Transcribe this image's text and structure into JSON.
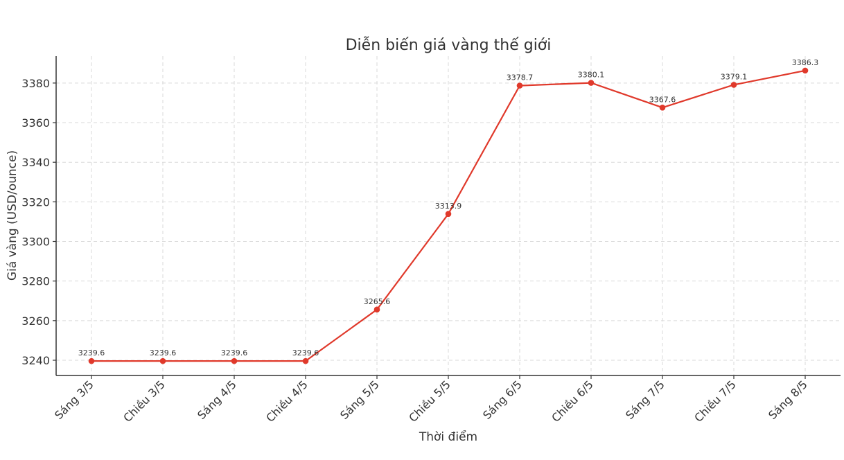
{
  "chart_data": {
    "type": "line",
    "title": "Diễn biến giá vàng thế giới",
    "xlabel": "Thời điểm",
    "ylabel": "Giá vàng (USD/ounce)",
    "categories": [
      "Sáng 3/5",
      "Chiều 3/5",
      "Sáng 4/5",
      "Chiều 4/5",
      "Sáng 5/5",
      "Chiều 5/5",
      "Sáng 6/5",
      "Chiều 6/5",
      "Sáng 7/5",
      "Chiều 7/5",
      "Sáng 8/5"
    ],
    "series": [
      {
        "values": [
          3239.6,
          3239.6,
          3239.6,
          3239.6,
          3265.6,
          3313.9,
          3378.7,
          3380.1,
          3367.6,
          3379.1,
          3386.3
        ],
        "color": "#e0392b"
      }
    ],
    "data_labels": [
      "3239.6",
      "3239.6",
      "3239.6",
      "3239.6",
      "3265.6",
      "3313.9",
      "3378.7",
      "3380.1",
      "3367.6",
      "3379.1",
      "3386.3"
    ],
    "ylim": [
      3232.3,
      3393.6
    ],
    "yticks": [
      3240,
      3260,
      3280,
      3300,
      3320,
      3340,
      3360,
      3380
    ],
    "grid": true,
    "legend": "none"
  }
}
